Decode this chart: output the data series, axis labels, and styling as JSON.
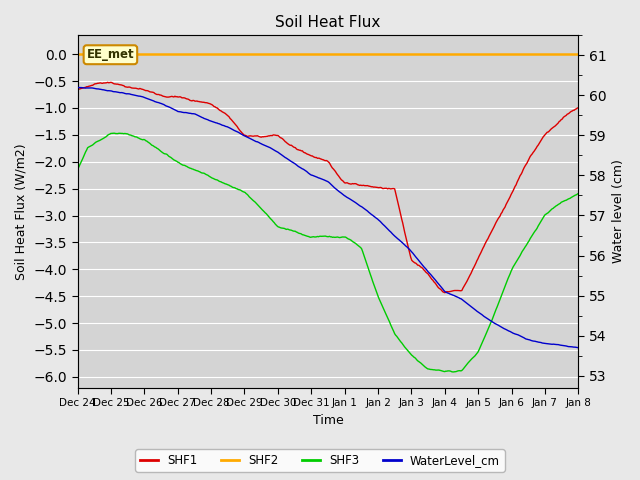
{
  "title": "Soil Heat Flux",
  "ylabel_left": "Soil Heat Flux (W/m2)",
  "ylabel_right": "Water level (cm)",
  "xlabel": "Time",
  "ylim_left": [
    -6.2,
    0.35
  ],
  "ylim_right": [
    52.7,
    61.5
  ],
  "yticks_left": [
    0.0,
    -0.5,
    -1.0,
    -1.5,
    -2.0,
    -2.5,
    -3.0,
    -3.5,
    -4.0,
    -4.5,
    -5.0,
    -5.5,
    -6.0
  ],
  "yticks_right": [
    53.0,
    54.0,
    55.0,
    56.0,
    57.0,
    58.0,
    59.0,
    60.0,
    61.0
  ],
  "fig_bg_color": "#e8e8e8",
  "plot_bg_color": "#d4d4d4",
  "grid_color": "#ffffff",
  "annotation_label": "EE_met",
  "annotation_bg": "#ffffcc",
  "annotation_border": "#cc8800",
  "shf2_color": "#ffaa00",
  "shf1_color": "#dd0000",
  "shf3_color": "#00cc00",
  "wl_color": "#0000cc",
  "line_width": 1.0,
  "xtick_labels": [
    "Dec 24",
    "Dec 25",
    "Dec 26",
    "Dec 27",
    "Dec 28",
    "Dec 29",
    "Dec 30",
    "Dec 31",
    "Jan 1",
    "Jan 2",
    "Jan 3",
    "Jan 4",
    "Jan 5",
    "Jan 6",
    "Jan 7",
    "Jan 8"
  ]
}
